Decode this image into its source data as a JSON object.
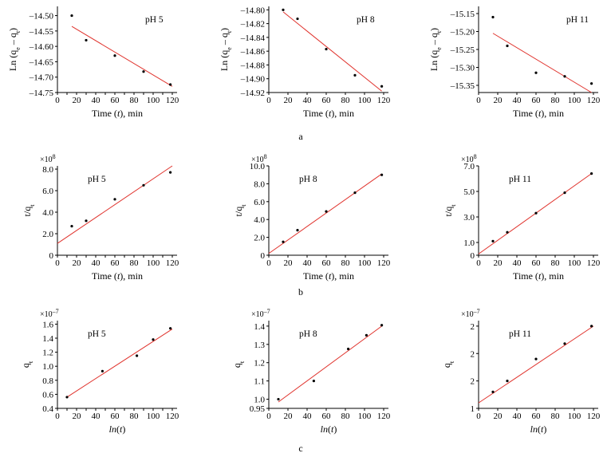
{
  "captions": [
    "a",
    "b",
    "c"
  ],
  "styles": {
    "line_color": "#e0332d",
    "point_color": "#000000",
    "axis_color": "#000000"
  },
  "chart_data": [
    {
      "type": "scatter",
      "row": 0,
      "col": 0,
      "annotation": "pH 5",
      "ylabel": "Ln (q<sub>e</sub> – q<sub>t</sub>)",
      "xlabel": "Time (<i>t</i>), min",
      "xlim": [
        0,
        125
      ],
      "ylim": [
        -14.75,
        -14.47
      ],
      "xticks": [
        0,
        10,
        20,
        30,
        40,
        50,
        60,
        70,
        80,
        90,
        100,
        110,
        120
      ],
      "yticks": [
        -14.75,
        -14.7,
        -14.65,
        -14.6,
        -14.55,
        -14.5
      ],
      "ytick_labels": [
        "–14.75",
        "–14.70",
        "–14.65",
        "–14.60",
        "–14.55",
        "–14.50"
      ],
      "exponent": "",
      "points": [
        [
          15,
          -14.5
        ],
        [
          30,
          -14.58
        ],
        [
          60,
          -14.63
        ],
        [
          90,
          -14.682
        ],
        [
          118,
          -14.724
        ]
      ],
      "fit": [
        [
          15,
          -14.535
        ],
        [
          120,
          -14.73
        ]
      ]
    },
    {
      "type": "scatter",
      "row": 0,
      "col": 1,
      "annotation": "pH 8",
      "ylabel": "Ln (q<sub>e</sub> – q<sub>t</sub>)",
      "xlabel": "Time (<i>t</i>), min",
      "xlim": [
        0,
        125
      ],
      "ylim": [
        -14.92,
        -14.795
      ],
      "xticks": [
        0,
        20,
        40,
        60,
        80,
        100,
        120
      ],
      "yticks": [
        -14.92,
        -14.9,
        -14.88,
        -14.86,
        -14.84,
        -14.82,
        -14.8
      ],
      "ytick_labels": [
        "–14.92",
        "–14.90",
        "–14.88",
        "–14.86",
        "–14.84",
        "–14.82",
        "–14.80"
      ],
      "exponent": "",
      "points": [
        [
          15,
          -14.8
        ],
        [
          30,
          -14.813
        ],
        [
          60,
          -14.857
        ],
        [
          90,
          -14.895
        ],
        [
          118,
          -14.911
        ]
      ],
      "fit": [
        [
          15,
          -14.803
        ],
        [
          118,
          -14.918
        ]
      ]
    },
    {
      "type": "scatter",
      "row": 0,
      "col": 2,
      "annotation": "pH 11",
      "ylabel": "Ln (q<sub>e</sub> – q<sub>t</sub>)",
      "xlabel": "Time (<i>t</i>), min",
      "xlim": [
        0,
        125
      ],
      "ylim": [
        -15.37,
        -15.13
      ],
      "xticks": [
        0,
        20,
        40,
        60,
        80,
        100,
        120
      ],
      "yticks": [
        -15.35,
        -15.3,
        -15.25,
        -15.2,
        -15.15
      ],
      "ytick_labels": [
        "–15.35",
        "–15.30",
        "–15.25",
        "–15.20",
        "–15.15"
      ],
      "exponent": "",
      "points": [
        [
          15,
          -15.16
        ],
        [
          30,
          -15.24
        ],
        [
          60,
          -15.315
        ],
        [
          90,
          -15.325
        ],
        [
          118,
          -15.345
        ]
      ],
      "fit": [
        [
          15,
          -15.205
        ],
        [
          118,
          -15.37
        ]
      ]
    },
    {
      "type": "scatter",
      "row": 1,
      "col": 0,
      "annotation": "pH 5",
      "ylabel": "t/q<sub>t</sub>",
      "xlabel": "Time (<i>t</i>), min",
      "xlim": [
        0,
        125
      ],
      "ylim": [
        0,
        8.3
      ],
      "xticks": [
        0,
        10,
        20,
        30,
        40,
        50,
        60,
        70,
        80,
        90,
        100,
        110,
        120
      ],
      "yticks": [
        0,
        2,
        4,
        6,
        8
      ],
      "ytick_labels": [
        "0",
        "2.0",
        "4.0",
        "6.0",
        "8.0"
      ],
      "exponent": "×10<sup>8</sup>",
      "points": [
        [
          15,
          2.7
        ],
        [
          30,
          3.2
        ],
        [
          60,
          5.2
        ],
        [
          90,
          6.5
        ],
        [
          118,
          7.7
        ]
      ],
      "fit": [
        [
          0,
          1.1
        ],
        [
          120,
          8.3
        ]
      ]
    },
    {
      "type": "scatter",
      "row": 1,
      "col": 1,
      "annotation": "pH 8",
      "ylabel": "t/q<sub>t</sub>",
      "xlabel": "Time (<i>t</i>), min",
      "xlim": [
        0,
        125
      ],
      "ylim": [
        0,
        10
      ],
      "xticks": [
        0,
        20,
        40,
        60,
        80,
        100,
        120
      ],
      "yticks": [
        0,
        2,
        4,
        6,
        8,
        10
      ],
      "ytick_labels": [
        "0",
        "2.0",
        "4.0",
        "6.0",
        "8.0",
        "10.0"
      ],
      "exponent": "×10<sup>8</sup>",
      "points": [
        [
          15,
          1.5
        ],
        [
          30,
          2.8
        ],
        [
          60,
          4.9
        ],
        [
          90,
          7.0
        ],
        [
          118,
          9.0
        ]
      ],
      "fit": [
        [
          0,
          0.2
        ],
        [
          118,
          9.1
        ]
      ]
    },
    {
      "type": "scatter",
      "row": 1,
      "col": 2,
      "annotation": "pH 11",
      "ylabel": "t/q<sub>t</sub>",
      "xlabel": "Time (<i>t</i>), min",
      "xlim": [
        0,
        125
      ],
      "ylim": [
        0,
        7
      ],
      "xticks": [
        0,
        20,
        40,
        60,
        80,
        100,
        120
      ],
      "yticks": [
        0,
        1,
        3,
        5,
        7
      ],
      "ytick_labels": [
        "0",
        "1.0",
        "3.0",
        "5.0",
        "7.0"
      ],
      "exponent": "×10<sup>8</sup>",
      "points": [
        [
          15,
          1.1
        ],
        [
          30,
          1.8
        ],
        [
          60,
          3.3
        ],
        [
          90,
          4.9
        ],
        [
          118,
          6.4
        ]
      ],
      "fit": [
        [
          0,
          0.1
        ],
        [
          118,
          6.4
        ]
      ]
    },
    {
      "type": "scatter",
      "row": 2,
      "col": 0,
      "annotation": "pH 5",
      "ylabel": "q<sub>t</sub>",
      "xlabel": "<i>ln</i>(<i>t</i>)",
      "xlim": [
        0,
        125
      ],
      "ylim": [
        0.4,
        1.65
      ],
      "xticks": [
        0,
        10,
        20,
        30,
        40,
        50,
        60,
        70,
        80,
        90,
        100,
        110,
        120
      ],
      "yticks": [
        0.4,
        0.6,
        0.8,
        1.0,
        1.2,
        1.4,
        1.6
      ],
      "ytick_labels": [
        "0.4",
        "0.6",
        "0.8",
        "1.0",
        "1.2",
        "1.4",
        "1.6"
      ],
      "exponent": "×10<sup>–7</sup>",
      "points": [
        [
          10,
          0.56
        ],
        [
          47,
          0.93
        ],
        [
          83,
          1.15
        ],
        [
          100,
          1.38
        ],
        [
          118,
          1.54
        ]
      ],
      "fit": [
        [
          10,
          0.56
        ],
        [
          120,
          1.53
        ]
      ]
    },
    {
      "type": "scatter",
      "row": 2,
      "col": 1,
      "annotation": "pH 8",
      "ylabel": "q<sub>t</sub>",
      "xlabel": "<i>ln</i>(<i>t</i>)",
      "xlim": [
        0,
        125
      ],
      "ylim": [
        0.95,
        1.43
      ],
      "xticks": [
        0,
        20,
        40,
        60,
        80,
        100,
        120
      ],
      "yticks": [
        0.95,
        1.0,
        1.1,
        1.2,
        1.3,
        1.4
      ],
      "ytick_labels": [
        "0.95",
        "1.0",
        "1.1",
        "1.2",
        "1.3",
        "1.4"
      ],
      "exponent": "×10<sup>–7</sup>",
      "points": [
        [
          10,
          1.0
        ],
        [
          47,
          1.1
        ],
        [
          83,
          1.275
        ],
        [
          102,
          1.35
        ],
        [
          118,
          1.405
        ]
      ],
      "fit": [
        [
          10,
          0.985
        ],
        [
          118,
          1.4
        ]
      ]
    },
    {
      "type": "scatter",
      "row": 2,
      "col": 2,
      "annotation": "pH 11",
      "ylabel": "q<sub>t</sub>",
      "xlabel": "<i>ln</i>(<i>t</i>)",
      "xlim": [
        0,
        125
      ],
      "ylim": [
        1,
        2.6
      ],
      "xticks": [
        0,
        20,
        40,
        60,
        80,
        100,
        120
      ],
      "yticks": [
        1,
        1.5,
        2,
        2.5
      ],
      "ytick_labels": [
        "1",
        "2",
        "2",
        "2"
      ],
      "exponent": "×10<sup>–7</sup>",
      "points": [
        [
          15,
          1.3
        ],
        [
          30,
          1.5
        ],
        [
          60,
          1.9
        ],
        [
          90,
          2.18
        ],
        [
          118,
          2.5
        ]
      ],
      "fit": [
        [
          0,
          1.1
        ],
        [
          120,
          2.5
        ]
      ]
    }
  ]
}
